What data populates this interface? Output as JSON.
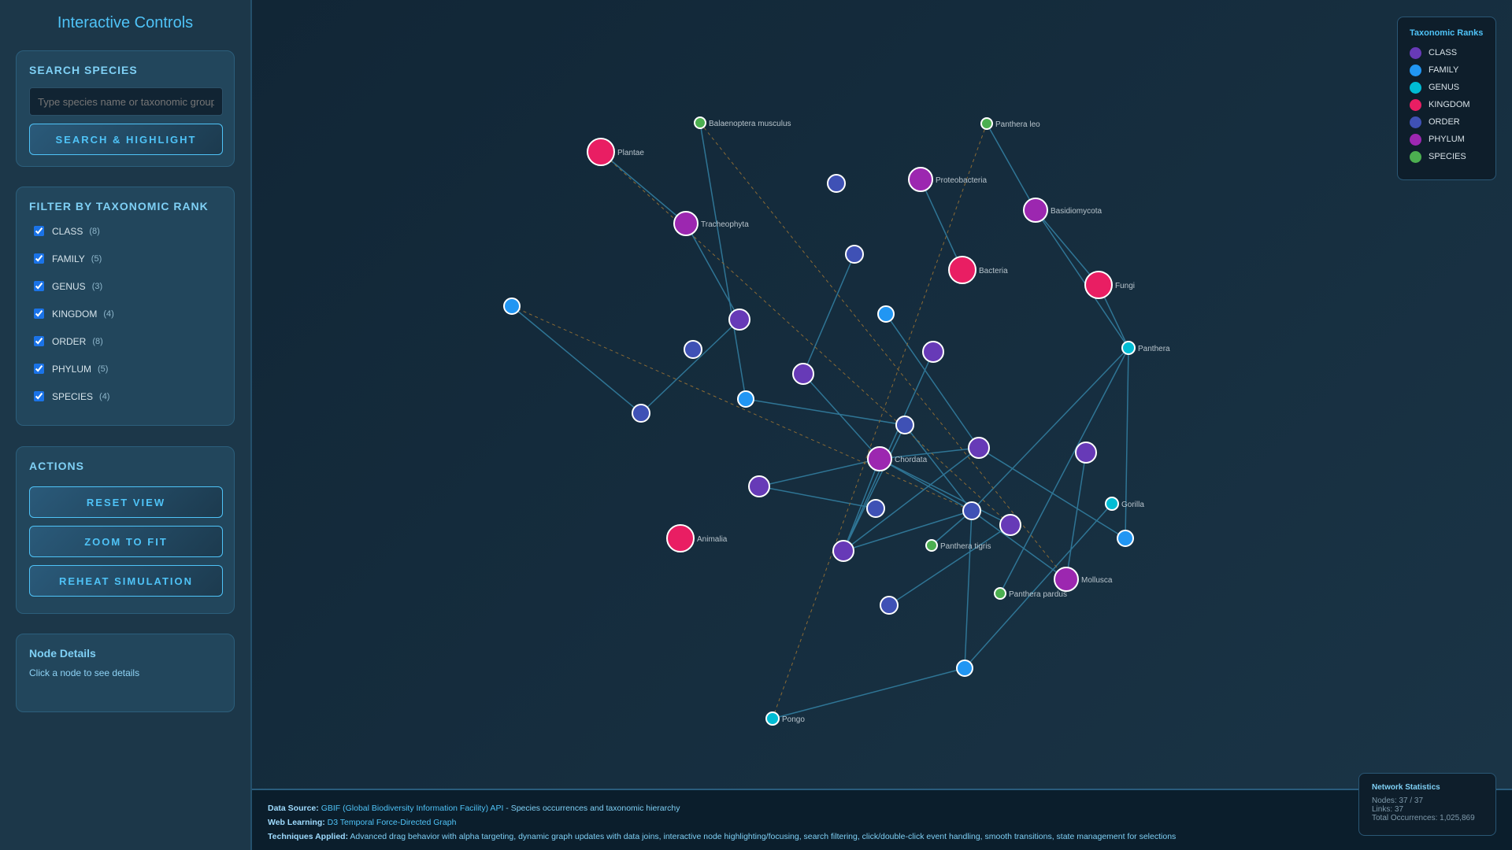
{
  "sidebar": {
    "title": "Interactive Controls",
    "search": {
      "heading": "SEARCH SPECIES",
      "placeholder": "Type species name or taxonomic group...",
      "value": "",
      "button": "SEARCH & HIGHLIGHT"
    },
    "filter": {
      "heading": "FILTER BY TAXONOMIC RANK",
      "items": [
        {
          "label": "CLASS",
          "count": "(8)",
          "checked": true
        },
        {
          "label": "FAMILY",
          "count": "(5)",
          "checked": true
        },
        {
          "label": "GENUS",
          "count": "(3)",
          "checked": true
        },
        {
          "label": "KINGDOM",
          "count": "(4)",
          "checked": true
        },
        {
          "label": "ORDER",
          "count": "(8)",
          "checked": true
        },
        {
          "label": "PHYLUM",
          "count": "(5)",
          "checked": true
        },
        {
          "label": "SPECIES",
          "count": "(4)",
          "checked": true
        }
      ]
    },
    "actions": {
      "heading": "ACTIONS",
      "buttons": [
        "RESET VIEW",
        "ZOOM TO FIT",
        "REHEAT SIMULATION"
      ]
    },
    "details": {
      "heading": "Node Details",
      "text": "Click a node to see details"
    }
  },
  "legend": {
    "title": "Taxonomic Ranks",
    "items": [
      {
        "label": "CLASS",
        "color": "#673ab7"
      },
      {
        "label": "FAMILY",
        "color": "#2196f3"
      },
      {
        "label": "GENUS",
        "color": "#00bcd4"
      },
      {
        "label": "KINGDOM",
        "color": "#e91e63"
      },
      {
        "label": "ORDER",
        "color": "#3f51b5"
      },
      {
        "label": "PHYLUM",
        "color": "#9c27b0"
      },
      {
        "label": "SPECIES",
        "color": "#4caf50"
      }
    ]
  },
  "stats": {
    "title": "Network Statistics",
    "nodes": "Nodes: 37 / 37",
    "links": "Links: 37",
    "occurrences": "Total Occurrences: 1,025,869"
  },
  "footer": {
    "source_label": "Data Source:",
    "source_link": "GBIF (Global Biodiversity Information Facility) API",
    "source_text": " - Species occurrences and taxonomic hierarchy",
    "learning_label": "Web Learning:",
    "learning_link": "D3 Temporal Force-Directed Graph",
    "techniques_label": "Techniques Applied:",
    "techniques_text": " Advanced drag behavior with alpha targeting, dynamic graph updates with data joins, interactive node highlighting/focusing, search filtering, click/double-click event handling, smooth transitions, state management for selections"
  },
  "graph": {
    "nodes": [
      {
        "rank": "KINGDOM",
        "label": "Plantae"
      },
      {
        "rank": "SPECIES",
        "label": "Balaenoptera musculus"
      },
      {
        "rank": "SPECIES",
        "label": "Panthera leo"
      },
      {
        "rank": "PHYLUM",
        "label": "Tracheophyta"
      },
      {
        "rank": "ORDER",
        "label": ""
      },
      {
        "rank": "PHYLUM",
        "label": "Proteobacteria"
      },
      {
        "rank": "PHYLUM",
        "label": "Basidiomycota"
      },
      {
        "rank": "KINGDOM",
        "label": "Bacteria"
      },
      {
        "rank": "KINGDOM",
        "label": "Fungi"
      },
      {
        "rank": "ORDER",
        "label": ""
      },
      {
        "rank": "FAMILY",
        "label": ""
      },
      {
        "rank": "FAMILY",
        "label": ""
      },
      {
        "rank": "GENUS",
        "label": "Panthera"
      },
      {
        "rank": "CLASS",
        "label": ""
      },
      {
        "rank": "ORDER",
        "label": ""
      },
      {
        "rank": "CLASS",
        "label": ""
      },
      {
        "rank": "CLASS",
        "label": ""
      },
      {
        "rank": "FAMILY",
        "label": ""
      },
      {
        "rank": "ORDER",
        "label": ""
      },
      {
        "rank": "ORDER",
        "label": ""
      },
      {
        "rank": "PHYLUM",
        "label": "Chordata"
      },
      {
        "rank": "CLASS",
        "label": ""
      },
      {
        "rank": "CLASS",
        "label": ""
      },
      {
        "rank": "CLASS",
        "label": ""
      },
      {
        "rank": "ORDER",
        "label": ""
      },
      {
        "rank": "ORDER",
        "label": ""
      },
      {
        "rank": "GENUS",
        "label": "Gorilla"
      },
      {
        "rank": "FAMILY",
        "label": ""
      },
      {
        "rank": "CLASS",
        "label": ""
      },
      {
        "rank": "KINGDOM",
        "label": "Animalia"
      },
      {
        "rank": "CLASS",
        "label": ""
      },
      {
        "rank": "SPECIES",
        "label": "Panthera tigris"
      },
      {
        "rank": "PHYLUM",
        "label": "Mollusca"
      },
      {
        "rank": "SPECIES",
        "label": "Panthera pardus"
      },
      {
        "rank": "ORDER",
        "label": ""
      },
      {
        "rank": "FAMILY",
        "label": ""
      },
      {
        "rank": "GENUS",
        "label": "Pongo"
      }
    ]
  }
}
